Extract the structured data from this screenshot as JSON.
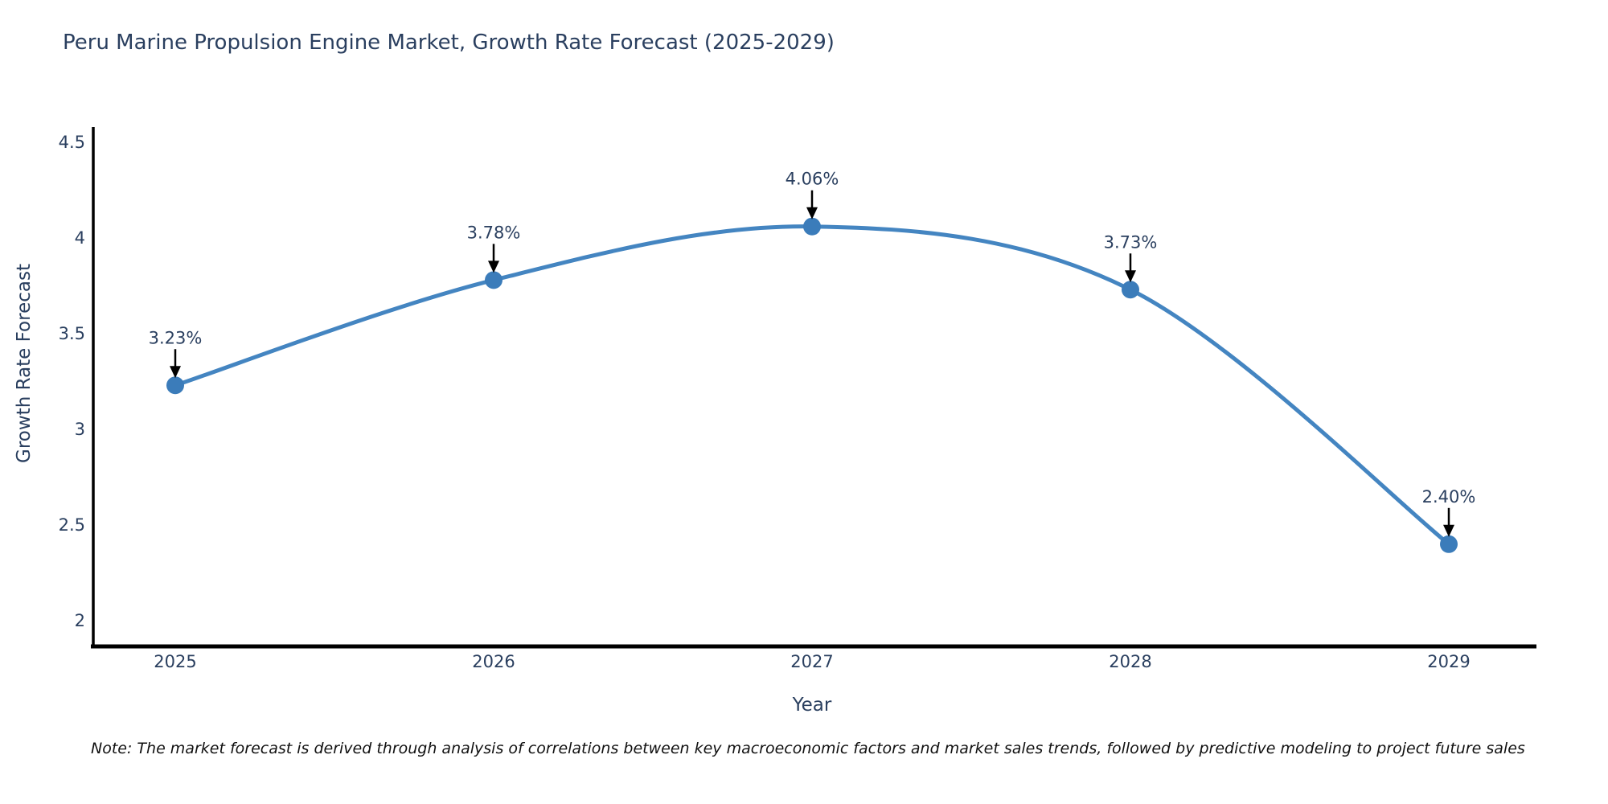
{
  "title": "Peru Marine Propulsion Engine Market, Growth Rate Forecast (2025-2029)",
  "note": "Note: The market forecast is derived through analysis of correlations between key macroeconomic factors and market sales trends, followed by predictive modeling to project future sales",
  "x_axis": {
    "label": "Year",
    "tick_labels": [
      "2025",
      "2026",
      "2027",
      "2028",
      "2029"
    ]
  },
  "y_axis": {
    "label": "Growth Rate Forecast",
    "tick_labels": [
      "2",
      "2.5",
      "3",
      "3.5",
      "4",
      "4.5"
    ],
    "tick_values": [
      2,
      2.5,
      3,
      3.5,
      4,
      4.5
    ]
  },
  "colors": {
    "line": "#4485c1",
    "marker": "#3b7cba",
    "text": "#2a3f5f",
    "axis": "#000000",
    "arrow": "#000000",
    "background": "#ffffff"
  },
  "chart_data": {
    "type": "line",
    "line_shape": "spline",
    "title": "Peru Marine Propulsion Engine Market, Growth Rate Forecast (2025-2029)",
    "xlabel": "Year",
    "ylabel": "Growth Rate Forecast",
    "x": [
      2025,
      2026,
      2027,
      2028,
      2029
    ],
    "values": [
      3.23,
      3.78,
      4.06,
      3.73,
      2.4
    ],
    "point_labels": [
      "3.23%",
      "3.78%",
      "4.06%",
      "3.73%",
      "2.40%"
    ],
    "ylim": [
      1.86,
      4.58
    ],
    "xlim": [
      2024.75,
      2029.28
    ],
    "grid": false,
    "legend": false,
    "annotation_style": "value-label-with-down-arrow-to-point"
  }
}
